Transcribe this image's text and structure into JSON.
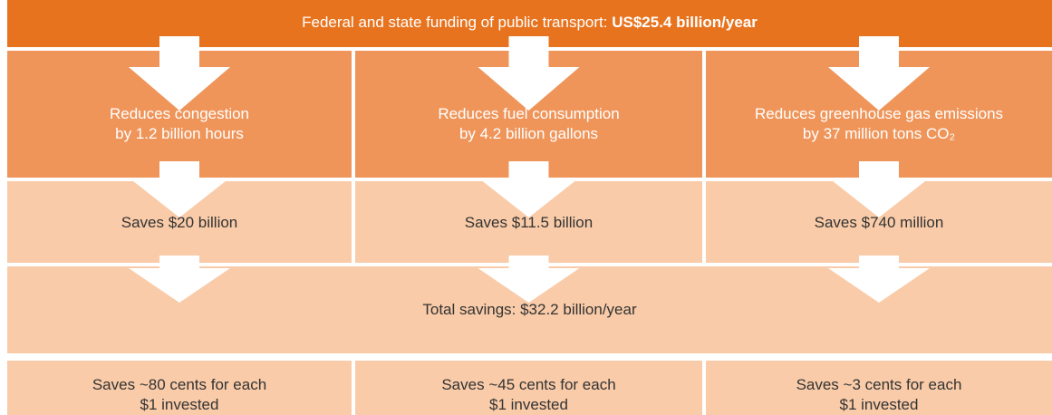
{
  "header": {
    "text": "Federal and state funding of public transport:",
    "emphasis": "US$25.4 billion/year"
  },
  "columns": [
    {
      "effect": [
        "Reduces congestion",
        "by 1.2 billion hours"
      ],
      "savings": "Saves $20 billion",
      "return": [
        "Saves ~80 cents for each",
        "$1 invested"
      ]
    },
    {
      "effect": [
        "Reduces fuel consumption",
        "by 4.2 billion gallons"
      ],
      "savings": "Saves $11.5 billion",
      "return": [
        "Saves ~45 cents for each",
        "$1 invested"
      ]
    },
    {
      "effect": [
        "Reduces greenhouse gas emissions",
        "by 37 million tons CO₂"
      ],
      "savings": "Saves $740 million",
      "return": [
        "Saves ~3 cents for each",
        "$1 invested"
      ]
    }
  ],
  "total": "Total savings: $32.2 billion/year"
}
